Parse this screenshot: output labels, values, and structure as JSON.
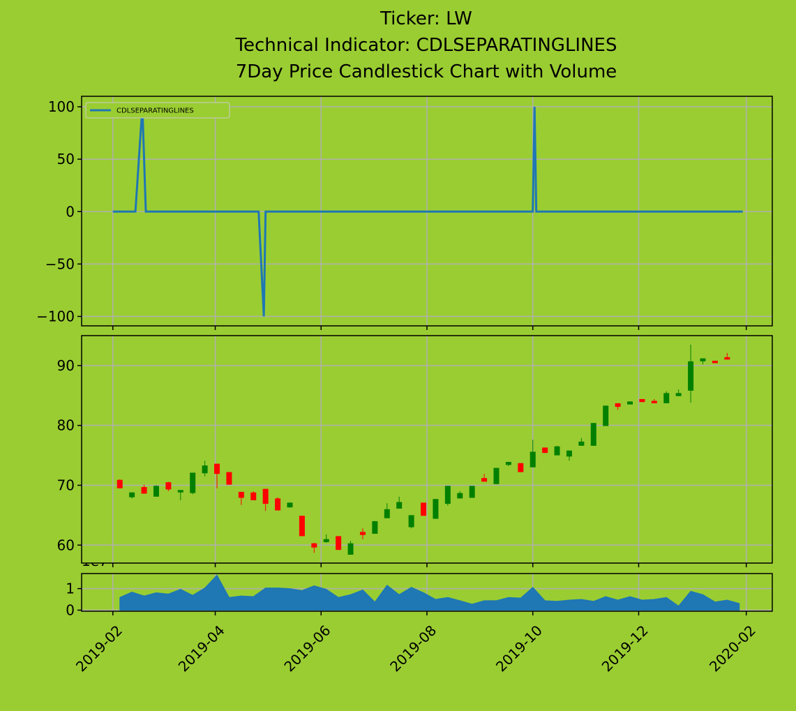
{
  "chart_data": [
    {
      "type": "line",
      "title": [
        "Ticker: LW",
        "Technical Indicator: CDLSEPARATINGLINES",
        "7Day Price Candlestick Chart with Volume"
      ],
      "x": [
        "2019-02-01",
        "2019-02-14",
        "2019-02-18",
        "2019-02-20",
        "2019-04-26",
        "2019-04-29",
        "2019-04-30",
        "2019-10-01",
        "2019-10-02",
        "2019-10-03",
        "2020-01-30"
      ],
      "series": [
        {
          "name": "CDLSEPARATINGLINES",
          "color": "#1f77b4",
          "values": [
            0,
            0,
            100,
            0,
            0,
            -100,
            0,
            0,
            100,
            0,
            0
          ]
        }
      ],
      "xlim": [
        "2019-01-14",
        "2020-02-16"
      ],
      "xticks": [
        "2019-02",
        "2019-04",
        "2019-06",
        "2019-08",
        "2019-10",
        "2019-12",
        "2020-02"
      ],
      "ylim": [
        -109,
        110
      ],
      "yticks": [
        {
          "value": -100,
          "label": "−100"
        },
        {
          "value": -50,
          "label": "−50"
        },
        0,
        50,
        100
      ],
      "grid": true,
      "legend": "upper left"
    },
    {
      "type": "candlestick",
      "x": [
        "2019-02-05",
        "2019-02-12",
        "2019-02-19",
        "2019-02-26",
        "2019-03-05",
        "2019-03-12",
        "2019-03-19",
        "2019-03-26",
        "2019-04-02",
        "2019-04-09",
        "2019-04-16",
        "2019-04-23",
        "2019-04-30",
        "2019-05-07",
        "2019-05-14",
        "2019-05-21",
        "2019-05-28",
        "2019-06-04",
        "2019-06-11",
        "2019-06-18",
        "2019-06-25",
        "2019-07-02",
        "2019-07-09",
        "2019-07-16",
        "2019-07-23",
        "2019-07-30",
        "2019-08-06",
        "2019-08-13",
        "2019-08-20",
        "2019-08-27",
        "2019-09-03",
        "2019-09-10",
        "2019-09-17",
        "2019-09-24",
        "2019-10-01",
        "2019-10-08",
        "2019-10-15",
        "2019-10-22",
        "2019-10-29",
        "2019-11-05",
        "2019-11-12",
        "2019-11-19",
        "2019-11-26",
        "2019-12-03",
        "2019-12-10",
        "2019-12-17",
        "2019-12-24",
        "2019-12-31",
        "2020-01-07",
        "2020-01-14",
        "2020-01-21"
      ],
      "open": [
        70.9,
        68.0,
        69.7,
        68.1,
        70.5,
        68.8,
        68.7,
        72.0,
        73.6,
        72.2,
        68.9,
        68.8,
        69.4,
        67.8,
        66.3,
        64.9,
        60.3,
        60.5,
        61.5,
        58.4,
        62.2,
        61.9,
        64.5,
        66.1,
        63.0,
        67.1,
        64.4,
        66.9,
        67.8,
        67.9,
        71.2,
        70.2,
        73.4,
        73.7,
        73.0,
        76.3,
        75.0,
        74.8,
        76.6,
        76.6,
        79.9,
        83.7,
        83.5,
        84.4,
        84.1,
        83.7,
        84.9,
        85.8,
        90.7,
        90.8,
        91.4
      ],
      "high": [
        71.0,
        68.8,
        70.1,
        70.0,
        70.6,
        69.2,
        72.1,
        74.1,
        73.6,
        72.2,
        68.9,
        69.0,
        69.4,
        68.0,
        67.1,
        64.9,
        60.4,
        61.8,
        61.5,
        60.7,
        62.8,
        64.0,
        67.0,
        68.1,
        65.0,
        67.1,
        67.7,
        69.9,
        69.0,
        69.9,
        71.9,
        72.9,
        73.9,
        73.7,
        77.6,
        76.3,
        76.6,
        75.8,
        77.9,
        80.4,
        83.3,
        83.7,
        84.0,
        84.4,
        84.4,
        85.7,
        86.0,
        93.5,
        91.2,
        90.8,
        92.1
      ],
      "low": [
        69.5,
        67.8,
        68.6,
        68.1,
        69.0,
        67.5,
        68.5,
        71.5,
        69.5,
        70.1,
        66.7,
        67.5,
        65.7,
        65.8,
        66.3,
        61.5,
        58.7,
        60.4,
        59.2,
        58.4,
        61.0,
        61.9,
        64.5,
        66.1,
        62.8,
        64.9,
        64.4,
        66.6,
        67.8,
        67.9,
        70.6,
        70.2,
        73.2,
        72.2,
        73.0,
        75.4,
        75.0,
        74.1,
        76.6,
        76.6,
        79.9,
        82.6,
        83.5,
        83.9,
        83.7,
        83.7,
        84.9,
        83.8,
        90.2,
        90.4,
        91.0
      ],
      "close": [
        69.5,
        68.8,
        68.6,
        69.9,
        69.3,
        69.2,
        72.1,
        73.3,
        71.9,
        70.1,
        67.9,
        67.5,
        66.9,
        65.8,
        67.1,
        61.5,
        59.6,
        61.0,
        59.2,
        60.3,
        61.7,
        64.0,
        66.0,
        67.2,
        65.0,
        64.9,
        67.7,
        69.9,
        68.7,
        69.9,
        70.6,
        72.9,
        73.9,
        72.2,
        75.6,
        75.4,
        76.5,
        75.8,
        77.3,
        80.4,
        83.3,
        83.1,
        84.0,
        83.9,
        83.7,
        85.4,
        85.4,
        90.7,
        91.2,
        90.4,
        91.0
      ],
      "colors": {
        "up": "green",
        "down": "red"
      },
      "xlim": [
        "2019-01-14",
        "2020-02-16"
      ],
      "xticks": [
        "2019-02",
        "2019-04",
        "2019-06",
        "2019-08",
        "2019-10",
        "2019-12",
        "2020-02"
      ],
      "ylim": [
        57,
        95
      ],
      "yticks": [
        60,
        70,
        80,
        90
      ],
      "grid": true
    },
    {
      "type": "area",
      "x": [
        "2019-02-05",
        "2019-02-12",
        "2019-02-19",
        "2019-02-26",
        "2019-03-05",
        "2019-03-12",
        "2019-03-19",
        "2019-03-26",
        "2019-04-02",
        "2019-04-09",
        "2019-04-16",
        "2019-04-23",
        "2019-04-30",
        "2019-05-07",
        "2019-05-14",
        "2019-05-21",
        "2019-05-28",
        "2019-06-04",
        "2019-06-11",
        "2019-06-18",
        "2019-06-25",
        "2019-07-02",
        "2019-07-09",
        "2019-07-16",
        "2019-07-23",
        "2019-07-30",
        "2019-08-06",
        "2019-08-13",
        "2019-08-20",
        "2019-08-27",
        "2019-09-03",
        "2019-09-10",
        "2019-09-17",
        "2019-09-24",
        "2019-10-01",
        "2019-10-08",
        "2019-10-15",
        "2019-10-22",
        "2019-10-29",
        "2019-11-05",
        "2019-11-12",
        "2019-11-19",
        "2019-11-26",
        "2019-12-03",
        "2019-12-10",
        "2019-12-17",
        "2019-12-24",
        "2019-12-31",
        "2020-01-07",
        "2020-01-14",
        "2020-01-21",
        "2020-01-28"
      ],
      "values": [
        0.59,
        0.84,
        0.66,
        0.81,
        0.75,
        0.97,
        0.69,
        1.03,
        1.63,
        0.59,
        0.66,
        0.63,
        1.03,
        1.03,
        1.0,
        0.91,
        1.13,
        0.97,
        0.59,
        0.72,
        0.94,
        0.38,
        1.16,
        0.72,
        1.06,
        0.81,
        0.5,
        0.59,
        0.44,
        0.28,
        0.44,
        0.44,
        0.59,
        0.56,
        1.06,
        0.44,
        0.41,
        0.47,
        0.5,
        0.41,
        0.63,
        0.47,
        0.63,
        0.47,
        0.5,
        0.59,
        0.19,
        0.88,
        0.72,
        0.38,
        0.47,
        0.31
      ],
      "color": "#1f77b4",
      "y_offset_label": "1e7",
      "xlim": [
        "2019-01-14",
        "2020-02-16"
      ],
      "xticks": [
        "2019-02",
        "2019-04",
        "2019-06",
        "2019-08",
        "2019-10",
        "2019-12",
        "2020-02"
      ],
      "ylim": [
        -0.05,
        1.7
      ],
      "yticks": [
        0,
        1
      ],
      "grid": true
    }
  ]
}
